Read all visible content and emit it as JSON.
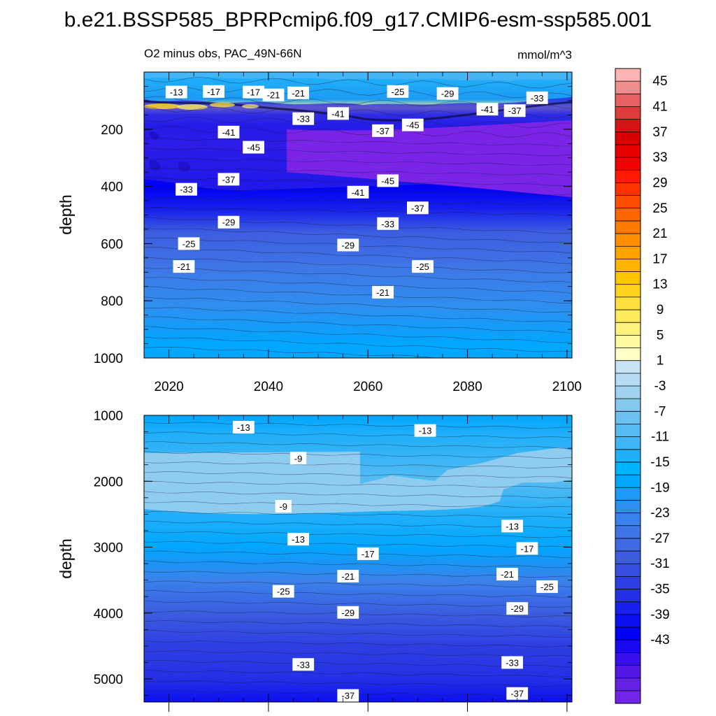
{
  "title": "b.e21.BSSP585_BPRPcmip6.f09_g17.CMIP6-esm-ssp585.001",
  "chart_data": [
    {
      "type": "contour",
      "panel": "upper",
      "title_left": "O2 minus obs, PAC_49N-66N",
      "title_right": "mmol/m^3",
      "xlabel": "",
      "ylabel": "depth",
      "xlim": [
        2015,
        2101
      ],
      "ylim": [
        1000,
        0
      ],
      "xticks": [
        2020,
        2040,
        2060,
        2080,
        2100
      ],
      "xtick_labels": [
        "2020",
        "2040",
        "2060",
        "2080",
        "2100"
      ],
      "yticks": [
        200,
        400,
        600,
        800,
        1000
      ],
      "ytick_labels": [
        "200",
        "400",
        "600",
        "800",
        "1000"
      ],
      "levels": [
        {
          "depth": 20,
          "value": -12
        },
        {
          "depth": 95,
          "value": -18
        },
        {
          "depth": 125,
          "value": 8
        },
        {
          "depth": 150,
          "value": -30
        },
        {
          "depth": 190,
          "value": -42
        },
        {
          "depth": 260,
          "value": -44
        },
        {
          "depth": 400,
          "value": -40
        },
        {
          "depth": 480,
          "value": -35
        },
        {
          "depth": 560,
          "value": -28
        },
        {
          "depth": 680,
          "value": -23
        },
        {
          "depth": 820,
          "value": -19
        },
        {
          "depth": 950,
          "value": -16
        },
        {
          "depth": 1000,
          "value": -15
        }
      ],
      "contour_labels": [
        {
          "x": 2021.5,
          "y": 70,
          "text": "-13"
        },
        {
          "x": 2029,
          "y": 68,
          "text": "-17"
        },
        {
          "x": 2037,
          "y": 70,
          "text": "-17"
        },
        {
          "x": 2041,
          "y": 80,
          "text": "-21"
        },
        {
          "x": 2046,
          "y": 73,
          "text": "-21"
        },
        {
          "x": 2047,
          "y": 163,
          "text": "-33"
        },
        {
          "x": 2054,
          "y": 145,
          "text": "-41"
        },
        {
          "x": 2063,
          "y": 205,
          "text": "-37"
        },
        {
          "x": 2066,
          "y": 68,
          "text": "-25"
        },
        {
          "x": 2069,
          "y": 185,
          "text": "-45"
        },
        {
          "x": 2076,
          "y": 75,
          "text": "-29"
        },
        {
          "x": 2084,
          "y": 130,
          "text": "-41"
        },
        {
          "x": 2089.5,
          "y": 135,
          "text": "-37"
        },
        {
          "x": 2094,
          "y": 90,
          "text": "-33"
        },
        {
          "x": 2032,
          "y": 210,
          "text": "-41"
        },
        {
          "x": 2037,
          "y": 263,
          "text": "-45"
        },
        {
          "x": 2032,
          "y": 375,
          "text": "-37"
        },
        {
          "x": 2023.5,
          "y": 410,
          "text": "-33"
        },
        {
          "x": 2058,
          "y": 420,
          "text": "-41"
        },
        {
          "x": 2064,
          "y": 380,
          "text": "-45"
        },
        {
          "x": 2070,
          "y": 475,
          "text": "-37"
        },
        {
          "x": 2064,
          "y": 530,
          "text": "-33"
        },
        {
          "x": 2032,
          "y": 525,
          "text": "-29"
        },
        {
          "x": 2024,
          "y": 600,
          "text": "-25"
        },
        {
          "x": 2056,
          "y": 605,
          "text": "-29"
        },
        {
          "x": 2071,
          "y": 680,
          "text": "-25"
        },
        {
          "x": 2023,
          "y": 680,
          "text": "-21"
        },
        {
          "x": 2063,
          "y": 770,
          "text": "-21"
        }
      ]
    },
    {
      "type": "contour",
      "panel": "lower",
      "xlabel": "",
      "ylabel": "depth",
      "xlim": [
        2015,
        2101
      ],
      "ylim": [
        5350,
        1000
      ],
      "yticks": [
        1000,
        2000,
        3000,
        4000,
        5000
      ],
      "ytick_labels": [
        "1000",
        "2000",
        "3000",
        "4000",
        "5000"
      ],
      "levels": [
        {
          "depth": 1000,
          "value": -15
        },
        {
          "depth": 1300,
          "value": -12
        },
        {
          "depth": 1700,
          "value": -9
        },
        {
          "depth": 2000,
          "value": -8
        },
        {
          "depth": 2500,
          "value": -11
        },
        {
          "depth": 3000,
          "value": -16
        },
        {
          "depth": 3500,
          "value": -22
        },
        {
          "depth": 4000,
          "value": -28
        },
        {
          "depth": 4500,
          "value": -31
        },
        {
          "depth": 5000,
          "value": -34
        },
        {
          "depth": 5350,
          "value": -38
        }
      ],
      "contour_labels": [
        {
          "x": 2035,
          "y": 1180,
          "text": "-13"
        },
        {
          "x": 2071.5,
          "y": 1230,
          "text": "-13"
        },
        {
          "x": 2046,
          "y": 1650,
          "text": "-9"
        },
        {
          "x": 2043,
          "y": 2380,
          "text": "-9"
        },
        {
          "x": 2046,
          "y": 2880,
          "text": "-13"
        },
        {
          "x": 2089,
          "y": 2680,
          "text": "-13"
        },
        {
          "x": 2060,
          "y": 3100,
          "text": "-17"
        },
        {
          "x": 2092,
          "y": 3020,
          "text": "-17"
        },
        {
          "x": 2056,
          "y": 3440,
          "text": "-21"
        },
        {
          "x": 2088,
          "y": 3410,
          "text": "-21"
        },
        {
          "x": 2043,
          "y": 3670,
          "text": "-25"
        },
        {
          "x": 2096,
          "y": 3600,
          "text": "-25"
        },
        {
          "x": 2056,
          "y": 3990,
          "text": "-29"
        },
        {
          "x": 2090,
          "y": 3930,
          "text": "-29"
        },
        {
          "x": 2047,
          "y": 4780,
          "text": "-33"
        },
        {
          "x": 2089,
          "y": 4750,
          "text": "-33"
        },
        {
          "x": 2056,
          "y": 5250,
          "text": "-37"
        },
        {
          "x": 2090,
          "y": 5220,
          "text": "-37"
        }
      ]
    }
  ],
  "colorbar": {
    "labels": [
      "45",
      "41",
      "37",
      "33",
      "29",
      "25",
      "21",
      "17",
      "13",
      "9",
      "5",
      "1",
      "-3",
      "-7",
      "-11",
      "-15",
      "-19",
      "-23",
      "-27",
      "-31",
      "-35",
      "-39",
      "-43"
    ],
    "colors": [
      "#fbb3b3",
      "#f28d8d",
      "#e86060",
      "#de3b3b",
      "#d41515",
      "#d90000",
      "#e60000",
      "#f50000",
      "#ff1a00",
      "#ff3300",
      "#ff4d00",
      "#ff6600",
      "#ff7a00",
      "#ff8f00",
      "#ffa200",
      "#ffb400",
      "#ffc400",
      "#ffd21e",
      "#ffdf3e",
      "#ffea5e",
      "#fff27e",
      "#fff9a0",
      "#ffffc6",
      "#c7e4f4",
      "#b5dcf2",
      "#9ed2ef",
      "#85c9ef",
      "#6dc1f0",
      "#56bbf2",
      "#3fb5f5",
      "#21aff8",
      "#00b4ff",
      "#00a6ff",
      "#1b9bf5",
      "#2f8ff0",
      "#3a82ea",
      "#3f76e6",
      "#3f6ae2",
      "#3c5de0",
      "#364fe0",
      "#2e3fe2",
      "#2430e6",
      "#1820eb",
      "#0c10f0",
      "#0000f5",
      "#1a08f0",
      "#3a10ea",
      "#5218e6",
      "#6420e6",
      "#7025e8"
    ]
  }
}
